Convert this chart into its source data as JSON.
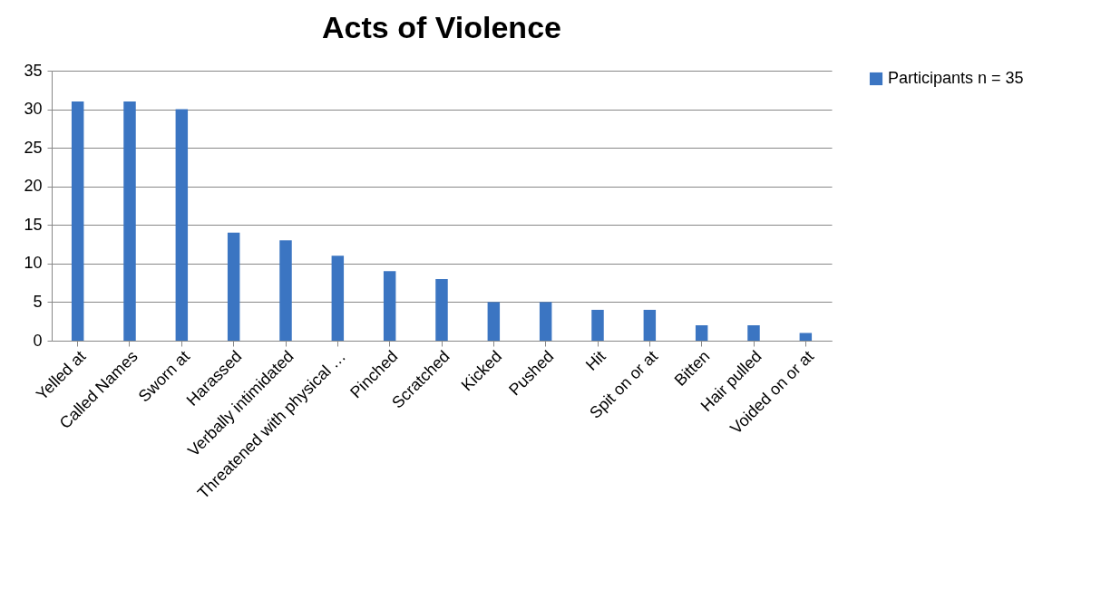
{
  "chart_data": {
    "type": "bar",
    "title": "Acts of Violence",
    "categories": [
      "Yelled at",
      "Called Names",
      "Sworn at",
      "Harassed",
      "Verbally intimidated",
      "Threatened with physical …",
      "Pinched",
      "Scratched",
      "Kicked",
      "Pushed",
      "Hit",
      "Spit on or at",
      "Bitten",
      "Hair pulled",
      "Voided on or at"
    ],
    "series": [
      {
        "name": "Participants n = 35",
        "color": "#3b75c2",
        "values": [
          31,
          31,
          30,
          14,
          13,
          11,
          9,
          8,
          5,
          5,
          4,
          4,
          2,
          2,
          1
        ]
      }
    ],
    "ylim": [
      0,
      35
    ],
    "yticks": [
      0,
      5,
      10,
      15,
      20,
      25,
      30,
      35
    ],
    "grid": "y",
    "legend": "right"
  }
}
